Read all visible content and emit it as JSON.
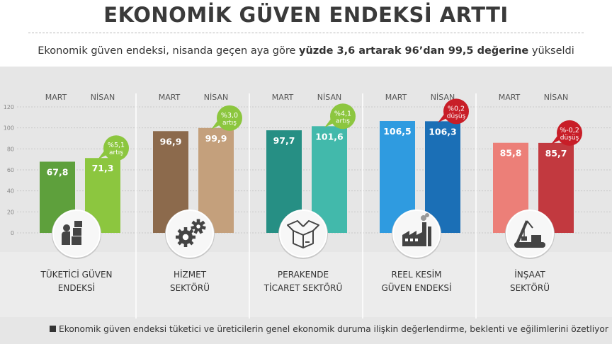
{
  "header": {
    "title": "EKONOMİK GÜVEN ENDEKSİ ARTTI",
    "subtitle_pre": "Ekonomik güven endeksi, nisanda geçen aya göre ",
    "subtitle_bold": "yüzde 3,6 artarak 96’dan 99,5 değerine",
    "subtitle_post": " yükseldi"
  },
  "column_labels": {
    "mart": "MART",
    "nisan": "NİSAN"
  },
  "chart_data": {
    "type": "bar",
    "ylim": [
      0,
      120
    ],
    "yticks": [
      "0",
      "20",
      "40",
      "60",
      "80",
      "100",
      "120"
    ],
    "grid": true,
    "series_names": [
      "MART",
      "NİSAN"
    ],
    "categories": [
      "TÜKETİCİ GÜVEN ENDEKSİ",
      "HİZMET SEKTÖRÜ",
      "PERAKENDE TİCARET SEKTÖRÜ",
      "REEL KESİM GÜVEN ENDEKSİ",
      "İNŞAAT SEKTÖRÜ"
    ],
    "groups": [
      {
        "label_lines": [
          "TÜKETİCİ GÜVEN",
          "ENDEKSİ"
        ],
        "icon": "consumer-boxes-icon",
        "mart": 67.8,
        "nisan": 71.3,
        "mart_label": "67,8",
        "nisan_label": "71,3",
        "change_lines": [
          "%5,1",
          "artış"
        ],
        "direction": "up",
        "colors": {
          "mart": "#5ea03c",
          "nisan": "#8cc63f",
          "badge": "#8cc63f"
        }
      },
      {
        "label_lines": [
          "HİZMET",
          "SEKTÖRÜ"
        ],
        "icon": "gears-icon",
        "mart": 96.9,
        "nisan": 99.9,
        "mart_label": "96,9",
        "nisan_label": "99,9",
        "change_lines": [
          "%3,0",
          "artış"
        ],
        "direction": "up",
        "colors": {
          "mart": "#8c6a4c",
          "nisan": "#c4a07c",
          "badge": "#8cc63f"
        }
      },
      {
        "label_lines": [
          "PERAKENDE",
          "TİCARET SEKTÖRÜ"
        ],
        "icon": "open-box-icon",
        "mart": 97.7,
        "nisan": 101.6,
        "mart_label": "97,7",
        "nisan_label": "101,6",
        "change_lines": [
          "%4,1",
          "artış"
        ],
        "direction": "up",
        "colors": {
          "mart": "#268f84",
          "nisan": "#42b9ab",
          "badge": "#8cc63f"
        }
      },
      {
        "label_lines": [
          "REEL KESİM",
          "GÜVEN ENDEKSİ"
        ],
        "icon": "factory-icon",
        "mart": 106.5,
        "nisan": 106.3,
        "mart_label": "106,5",
        "nisan_label": "106,3",
        "change_lines": [
          "%0,2",
          "düşüş"
        ],
        "direction": "down",
        "colors": {
          "mart": "#2f9be0",
          "nisan": "#1b6fb6",
          "badge": "#c81e28"
        }
      },
      {
        "label_lines": [
          "İNŞAAT",
          "SEKTÖRÜ"
        ],
        "icon": "crane-icon",
        "mart": 85.8,
        "nisan": 85.7,
        "mart_label": "85,8",
        "nisan_label": "85,7",
        "change_lines": [
          "%-0,2",
          "düşüş"
        ],
        "direction": "down",
        "colors": {
          "mart": "#ec7f78",
          "nisan": "#c2393f",
          "badge": "#c81e28"
        }
      }
    ]
  },
  "footer": {
    "note": "Ekonomik güven endeksi tüketici ve üreticilerin genel ekonomik duruma ilişkin değerlendirme, beklenti ve eğilimlerini özetliyor"
  }
}
